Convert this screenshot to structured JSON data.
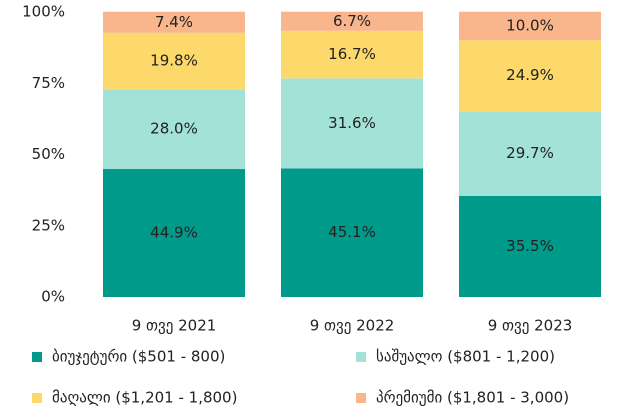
{
  "chart_data": {
    "type": "stacked_bar",
    "categories": [
      "9 თვე 2021",
      "9 თვე 2022",
      "9 თვე 2023"
    ],
    "series": [
      {
        "name": "ბიუჯეტური ($501 - 800)",
        "color": "#009a8a",
        "values": [
          44.9,
          45.1,
          35.5
        ],
        "value_labels": [
          "44.9%",
          "45.1%",
          "35.5%"
        ]
      },
      {
        "name": "საშუალო ($801 - 1,200)",
        "color": "#a3e3d7",
        "values": [
          28,
          31.6,
          29.7
        ],
        "value_labels": [
          "28.0%",
          "31.6%",
          "29.7%"
        ]
      },
      {
        "name": "მაღალი ($1,201 - 1,800)",
        "color": "#fdd96b",
        "values": [
          19.8,
          16.7,
          24.9
        ],
        "value_labels": [
          "19.8%",
          "16.7%",
          "24.9%"
        ]
      },
      {
        "name": "პრემიუმი ($1,801 - 3,000)",
        "color": "#f9b58b",
        "values": [
          7.4,
          6.7,
          10
        ],
        "value_labels": [
          "7.4%",
          "6.7%",
          "10.0%"
        ]
      }
    ],
    "ylim": [
      0,
      100
    ],
    "yticks": [
      {
        "value": 0,
        "label": "0%"
      },
      {
        "value": 25,
        "label": "25%"
      },
      {
        "value": 50,
        "label": "50%"
      },
      {
        "value": 75,
        "label": "75%"
      },
      {
        "value": 100,
        "label": "100%"
      }
    ],
    "legend": "bottom"
  }
}
